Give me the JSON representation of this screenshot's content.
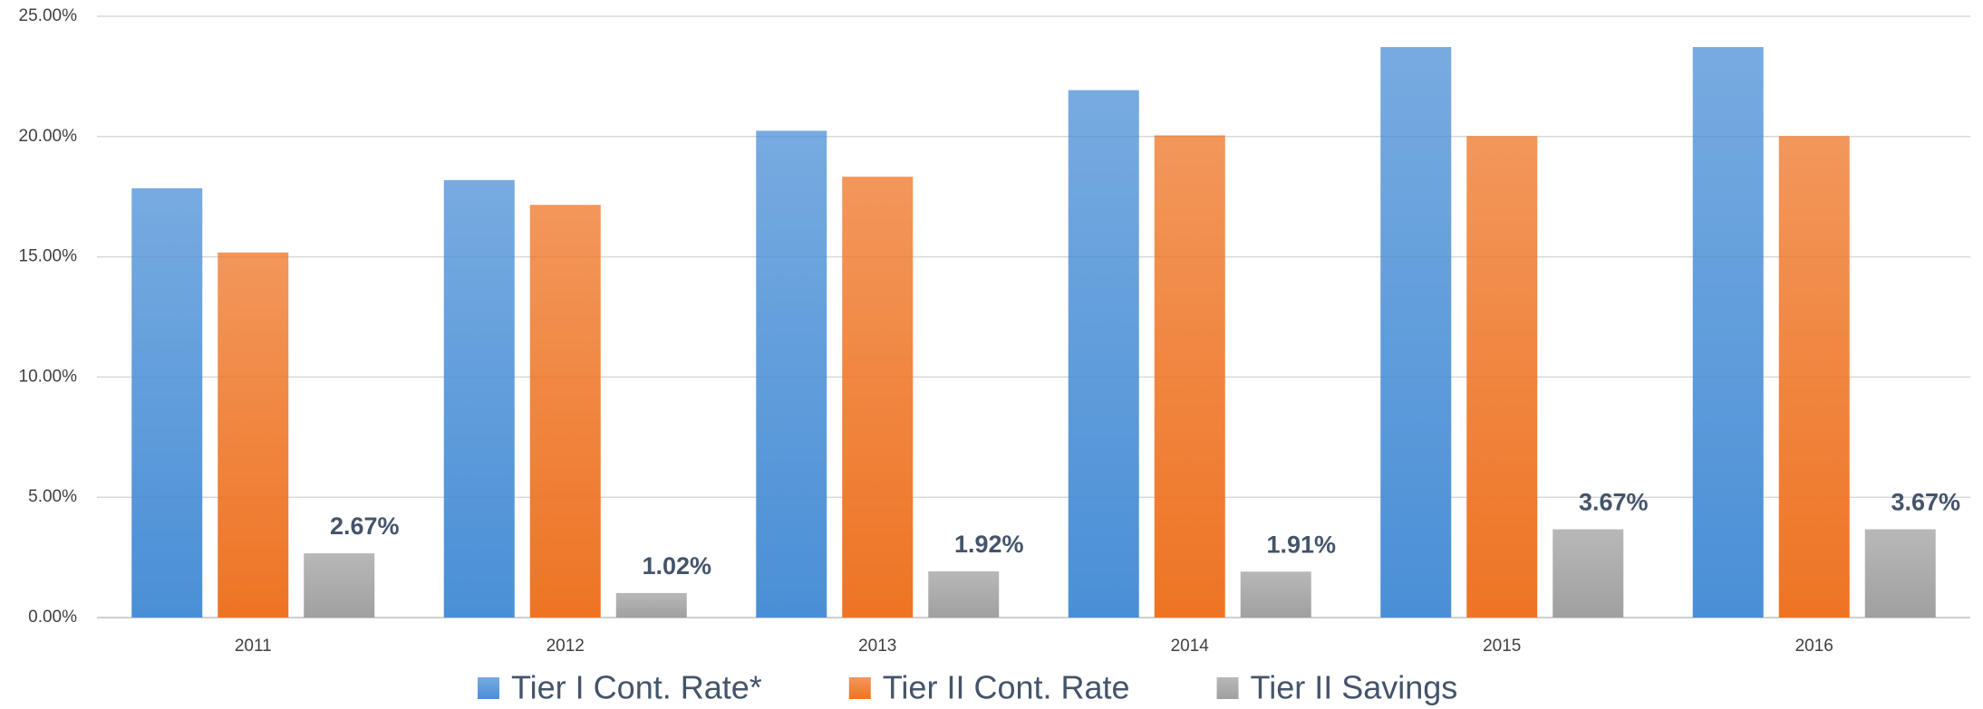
{
  "chart_data": {
    "type": "bar",
    "categories": [
      "2011",
      "2012",
      "2013",
      "2014",
      "2015",
      "2016"
    ],
    "series": [
      {
        "name": "Tier I Cont. Rate*",
        "color": "#4a8fd6",
        "values": [
          17.85,
          18.19,
          20.24,
          21.93,
          23.72,
          23.72
        ]
      },
      {
        "name": "Tier II Cont. Rate",
        "color": "#ee7424",
        "values": [
          15.18,
          17.16,
          18.33,
          20.05,
          20.02,
          20.02
        ]
      },
      {
        "name": "Tier II Savings",
        "color": "#a0a0a0",
        "values": [
          2.67,
          1.02,
          1.92,
          1.91,
          3.67,
          3.67
        ],
        "value_labels": [
          "2.67%",
          "1.02%",
          "1.92%",
          "1.91%",
          "3.67%",
          "3.67%"
        ]
      }
    ],
    "ylim": [
      0,
      25
    ],
    "yticks": [
      {
        "value": 0,
        "label": "0.00%"
      },
      {
        "value": 5,
        "label": "5.00%"
      },
      {
        "value": 10,
        "label": "10.00%"
      },
      {
        "value": 15,
        "label": "15.00%"
      },
      {
        "value": 20,
        "label": "20.00%"
      },
      {
        "value": 25,
        "label": "25.00%"
      }
    ],
    "grid": true,
    "legend": "bottom"
  }
}
